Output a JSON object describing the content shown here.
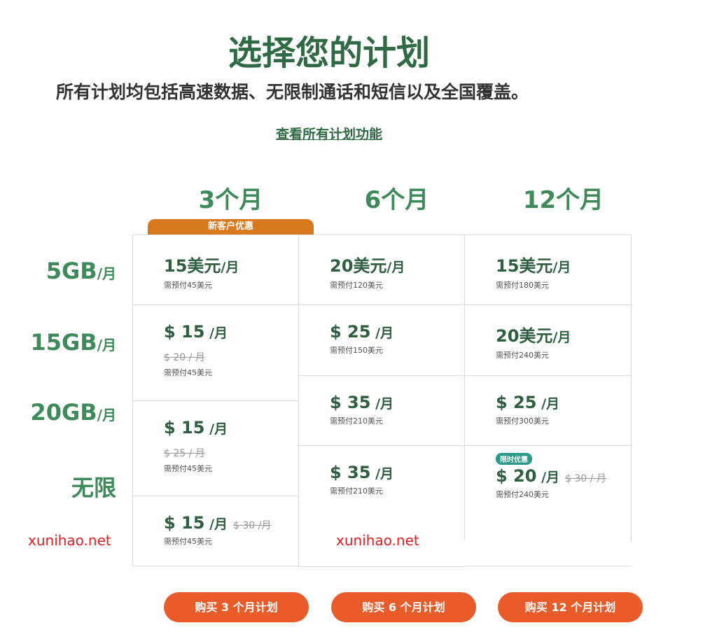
{
  "header": {
    "title": "选择您的计划",
    "subtitle": "所有计划均包括高速数据、无限制通话和短信以及全国覆盖。",
    "features_link": "查看所有计划功能"
  },
  "columns": [
    "3个月",
    "6个月",
    "12个月"
  ],
  "promo_badge": "新客户优惠",
  "rows": [
    {
      "label": "5GB",
      "unit": "/月"
    },
    {
      "label": "15GB",
      "unit": "/月"
    },
    {
      "label": "20GB",
      "unit": "/月"
    },
    {
      "label": "无限",
      "unit": ""
    }
  ],
  "plans": {
    "m3": [
      {
        "price": "15美元",
        "unit": "/月",
        "prepay": "需预付45美元"
      },
      {
        "price": "$ 15",
        "unit": " /月",
        "old": "$ 20 / 月",
        "prepay": "需预付45美元"
      },
      {
        "price": "$ 15",
        "unit": " /月",
        "old": "$ 25 / 月",
        "prepay": "需预付45美元"
      },
      {
        "price": "$ 15",
        "unit": " /月",
        "old": "$ 30 /月",
        "prepay": "需预付45美元"
      }
    ],
    "m6": [
      {
        "price": "20美元",
        "unit": "/月",
        "prepay": "需预付120美元"
      },
      {
        "price": "$ 25",
        "unit": " /月",
        "prepay": "需预付150美元"
      },
      {
        "price": "$ 35",
        "unit": " /月",
        "prepay": "需预付210美元"
      },
      {
        "price": "$ 35",
        "unit": " /月",
        "prepay": "需预付210美元"
      }
    ],
    "m12": [
      {
        "price": "15美元",
        "unit": "/月",
        "prepay": "需预付180美元"
      },
      {
        "price": "20美元",
        "unit": "/月",
        "prepay": "需预付240美元"
      },
      {
        "price": "$ 25",
        "unit": " /月",
        "prepay": "需预付300美元"
      },
      {
        "badge": "限时优惠",
        "price": "$ 20",
        "unit": " /月",
        "old": "$ 30 / 月",
        "prepay": "需预付240美元"
      }
    ]
  },
  "buttons": [
    "购买 3 个月计划",
    "购买 6 个月计划",
    "购买 12 个月计划"
  ],
  "watermark": "xunihao.net",
  "colors": {
    "primary_green": "#2f6a45",
    "accent_green": "#3f8a5a",
    "button": "#ea5b2a",
    "promo": "#d7791c",
    "limited": "#2a9a88"
  }
}
